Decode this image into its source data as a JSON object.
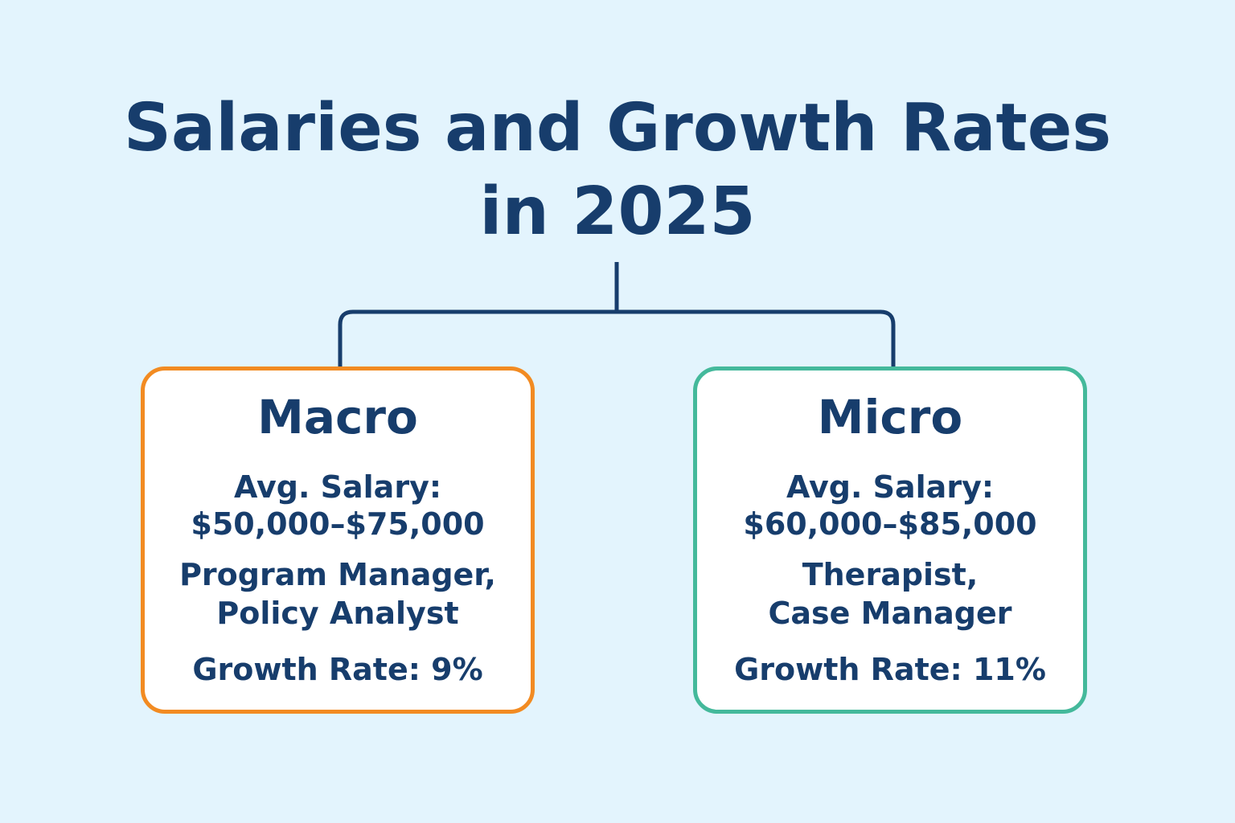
{
  "title": {
    "line1": "Salaries and Growth Rates",
    "line2": "in 2025"
  },
  "cards": [
    {
      "heading": "Macro",
      "salary_label": "Avg. Salary:",
      "salary_range": "$50,000–$75,000",
      "roles_line1": "Program Manager,",
      "roles_line2": "Policy Analyst",
      "growth": "Growth Rate: 9%",
      "border_color": "#f28b22"
    },
    {
      "heading": "Micro",
      "salary_label": "Avg. Salary:",
      "salary_range": "$60,000–$85,000",
      "roles_line1": "Therapist,",
      "roles_line2": "Case Manager",
      "growth": "Growth Rate: 11%",
      "border_color": "#44b99b"
    }
  ],
  "colors": {
    "background": "#e3f4fd",
    "text": "#173d6c",
    "card_background": "#ffffff"
  }
}
